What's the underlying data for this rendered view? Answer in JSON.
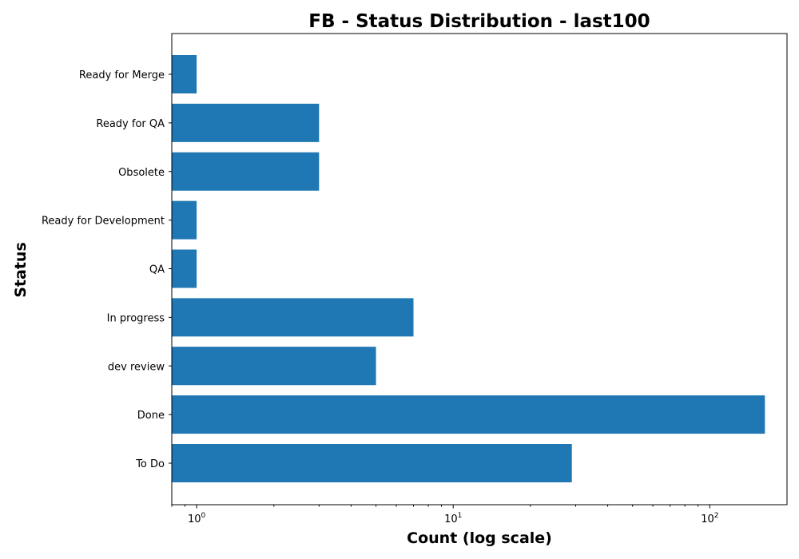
{
  "chart_data": {
    "type": "bar",
    "orientation": "horizontal",
    "title": "FB - Status Distribution - last100",
    "xlabel": "Count (log scale)",
    "ylabel": "Status",
    "x_scale": "log",
    "xlim": [
      0.8,
      200
    ],
    "x_ticks": [
      {
        "value": 1,
        "base": "10",
        "exp": "0"
      },
      {
        "value": 10,
        "base": "10",
        "exp": "1"
      },
      {
        "value": 100,
        "base": "10",
        "exp": "2"
      }
    ],
    "categories": [
      "To Do",
      "Done",
      "dev review",
      "In progress",
      "QA",
      "Ready for Development",
      "Obsolete",
      "Ready for QA",
      "Ready for Merge"
    ],
    "values": [
      29,
      164,
      5,
      7,
      1,
      1,
      3,
      3,
      1
    ],
    "bar_color": "#1f77b4",
    "grid": false,
    "legend": "none"
  }
}
